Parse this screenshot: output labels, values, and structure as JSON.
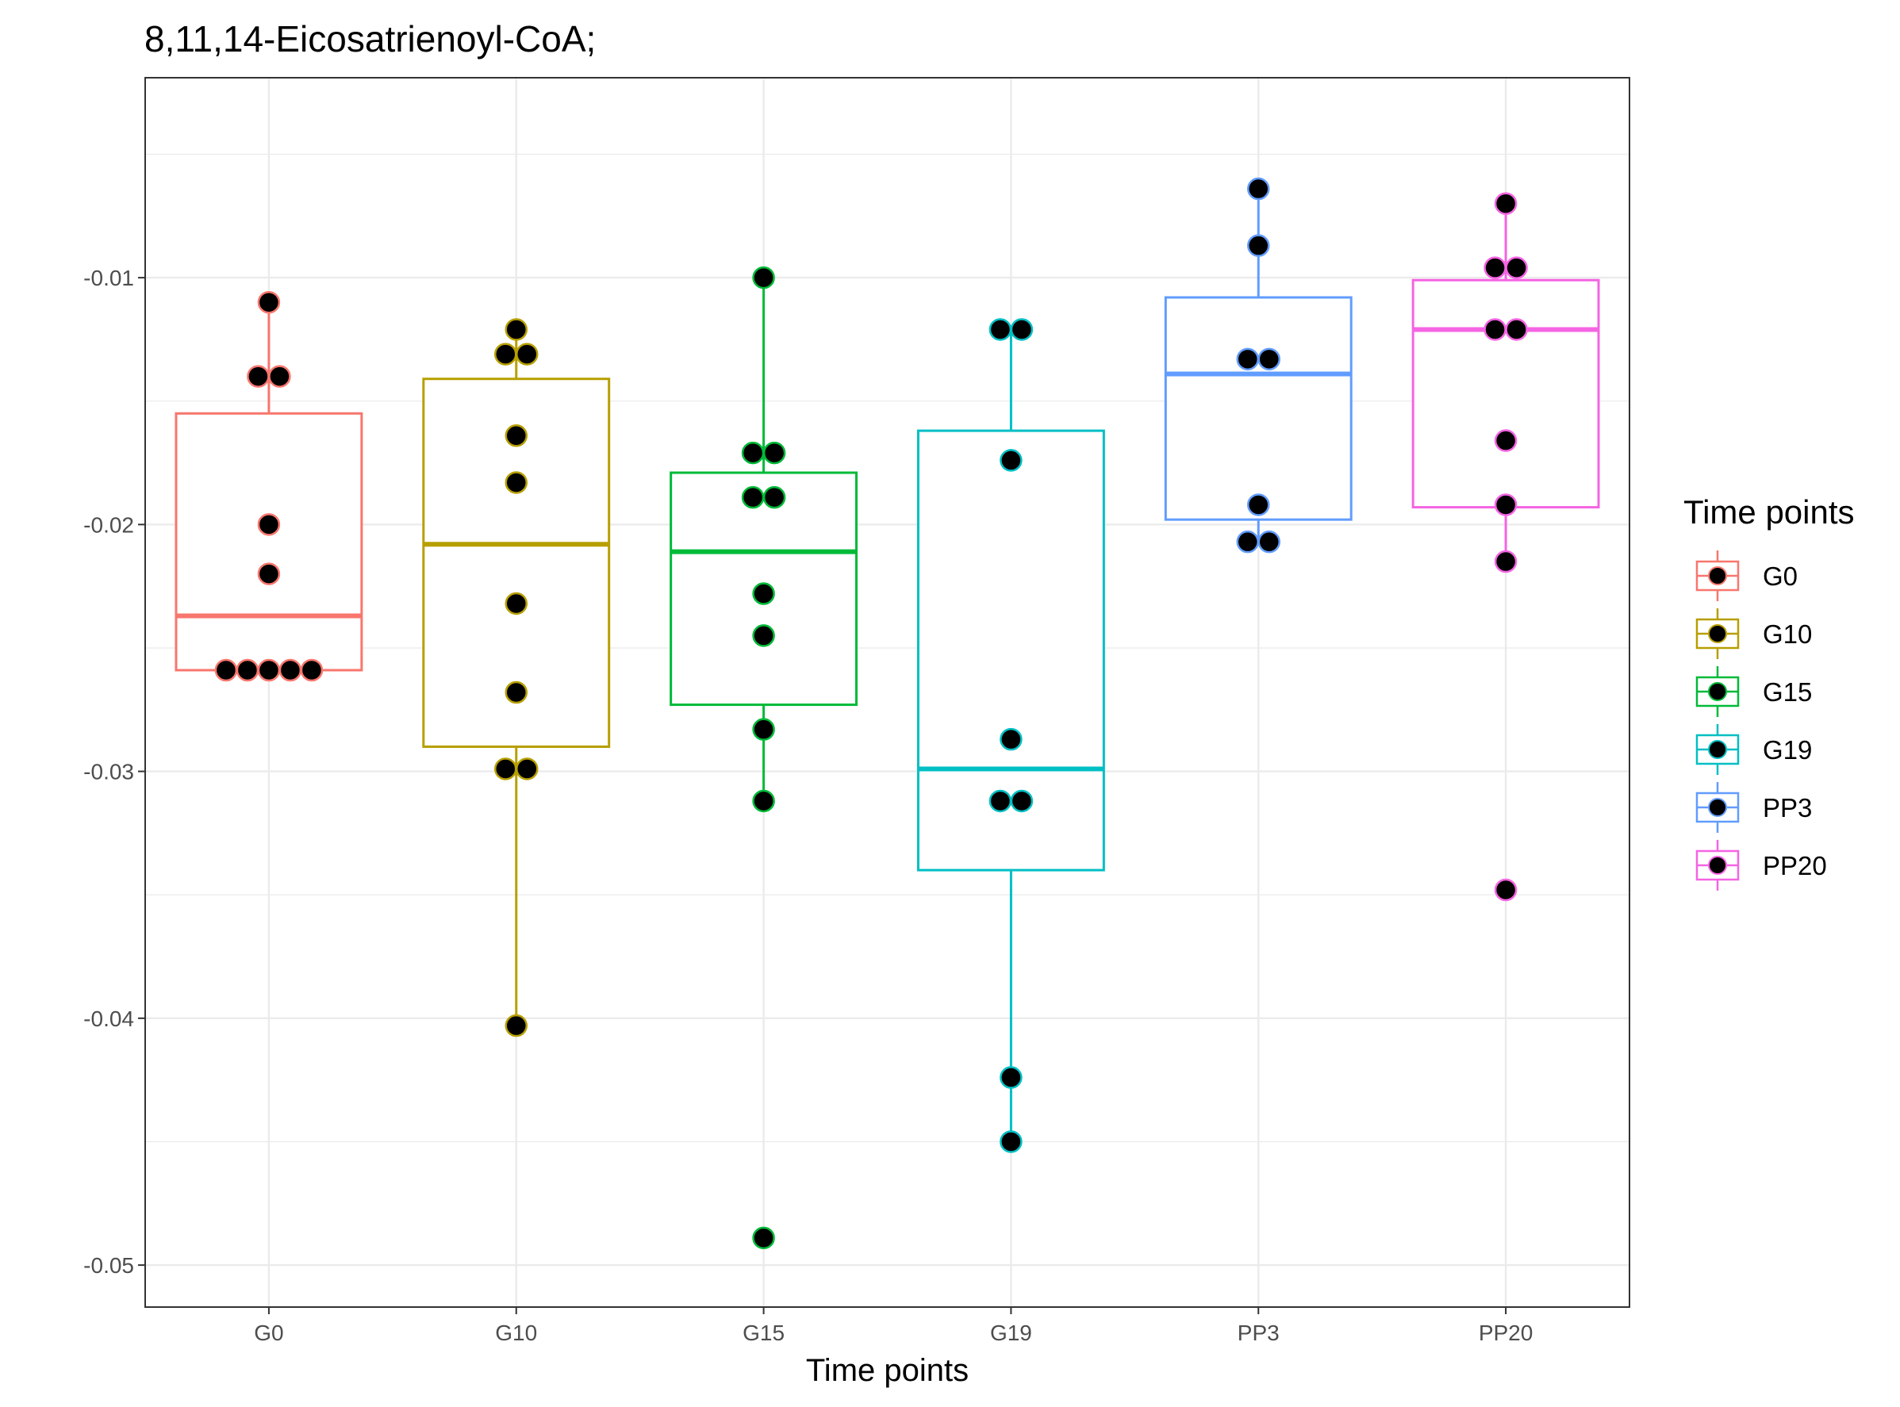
{
  "chart_data": {
    "type": "box",
    "title": "8,11,14-Eicosatrienoyl-CoA;",
    "xlabel": "Time points",
    "ylabel": "",
    "categories": [
      "G0",
      "G10",
      "G15",
      "G19",
      "PP3",
      "PP20"
    ],
    "ylim": [
      -0.0517,
      -0.0019
    ],
    "yticks": [
      -0.05,
      -0.04,
      -0.03,
      -0.02,
      -0.01
    ],
    "ytick_labels": [
      "-0.05",
      "-0.04",
      "-0.03",
      "-0.02",
      "-0.01"
    ],
    "grid": true,
    "legend": {
      "title": "Time points",
      "position": "right"
    },
    "point_fill": "#000000",
    "series": [
      {
        "name": "G0",
        "color": "#F8766D",
        "box": {
          "whisker_low": -0.0259,
          "q1": -0.0259,
          "median": -0.0237,
          "q3": -0.0155,
          "whisker_high": -0.011
        },
        "points": [
          -0.011,
          -0.014,
          -0.014,
          -0.02,
          -0.022,
          -0.0259,
          -0.0259,
          -0.0259,
          -0.0259,
          -0.0259
        ]
      },
      {
        "name": "G10",
        "color": "#B79F00",
        "box": {
          "whisker_low": -0.0403,
          "q1": -0.029,
          "median": -0.0208,
          "q3": -0.0141,
          "whisker_high": -0.0121
        },
        "points": [
          -0.0121,
          -0.0131,
          -0.0131,
          -0.0164,
          -0.0183,
          -0.0232,
          -0.0268,
          -0.0299,
          -0.0299,
          -0.0403
        ]
      },
      {
        "name": "G15",
        "color": "#00BA38",
        "box": {
          "whisker_low": -0.0312,
          "q1": -0.0273,
          "median": -0.0211,
          "q3": -0.0179,
          "whisker_high": -0.01
        },
        "points": [
          -0.01,
          -0.0171,
          -0.0171,
          -0.0189,
          -0.0189,
          -0.0228,
          -0.0245,
          -0.0283,
          -0.0312,
          -0.0489
        ]
      },
      {
        "name": "G19",
        "color": "#00BFC4",
        "box": {
          "whisker_low": -0.045,
          "q1": -0.034,
          "median": -0.0299,
          "q3": -0.0162,
          "whisker_high": -0.0121
        },
        "points": [
          -0.0121,
          -0.0121,
          -0.0174,
          -0.0287,
          -0.0312,
          -0.0312,
          -0.0424,
          -0.045
        ]
      },
      {
        "name": "PP3",
        "color": "#619CFF",
        "box": {
          "whisker_low": -0.0207,
          "q1": -0.0198,
          "median": -0.0139,
          "q3": -0.0108,
          "whisker_high": -0.0064
        },
        "points": [
          -0.0064,
          -0.0087,
          -0.0133,
          -0.0133,
          -0.0192,
          -0.0207,
          -0.0207
        ]
      },
      {
        "name": "PP20",
        "color": "#F564E3",
        "box": {
          "whisker_low": -0.0215,
          "q1": -0.0193,
          "median": -0.0121,
          "q3": -0.0101,
          "whisker_high": -0.007
        },
        "points": [
          -0.007,
          -0.0096,
          -0.0096,
          -0.0121,
          -0.0121,
          -0.0166,
          -0.0192,
          -0.0215,
          -0.0348
        ]
      }
    ]
  }
}
